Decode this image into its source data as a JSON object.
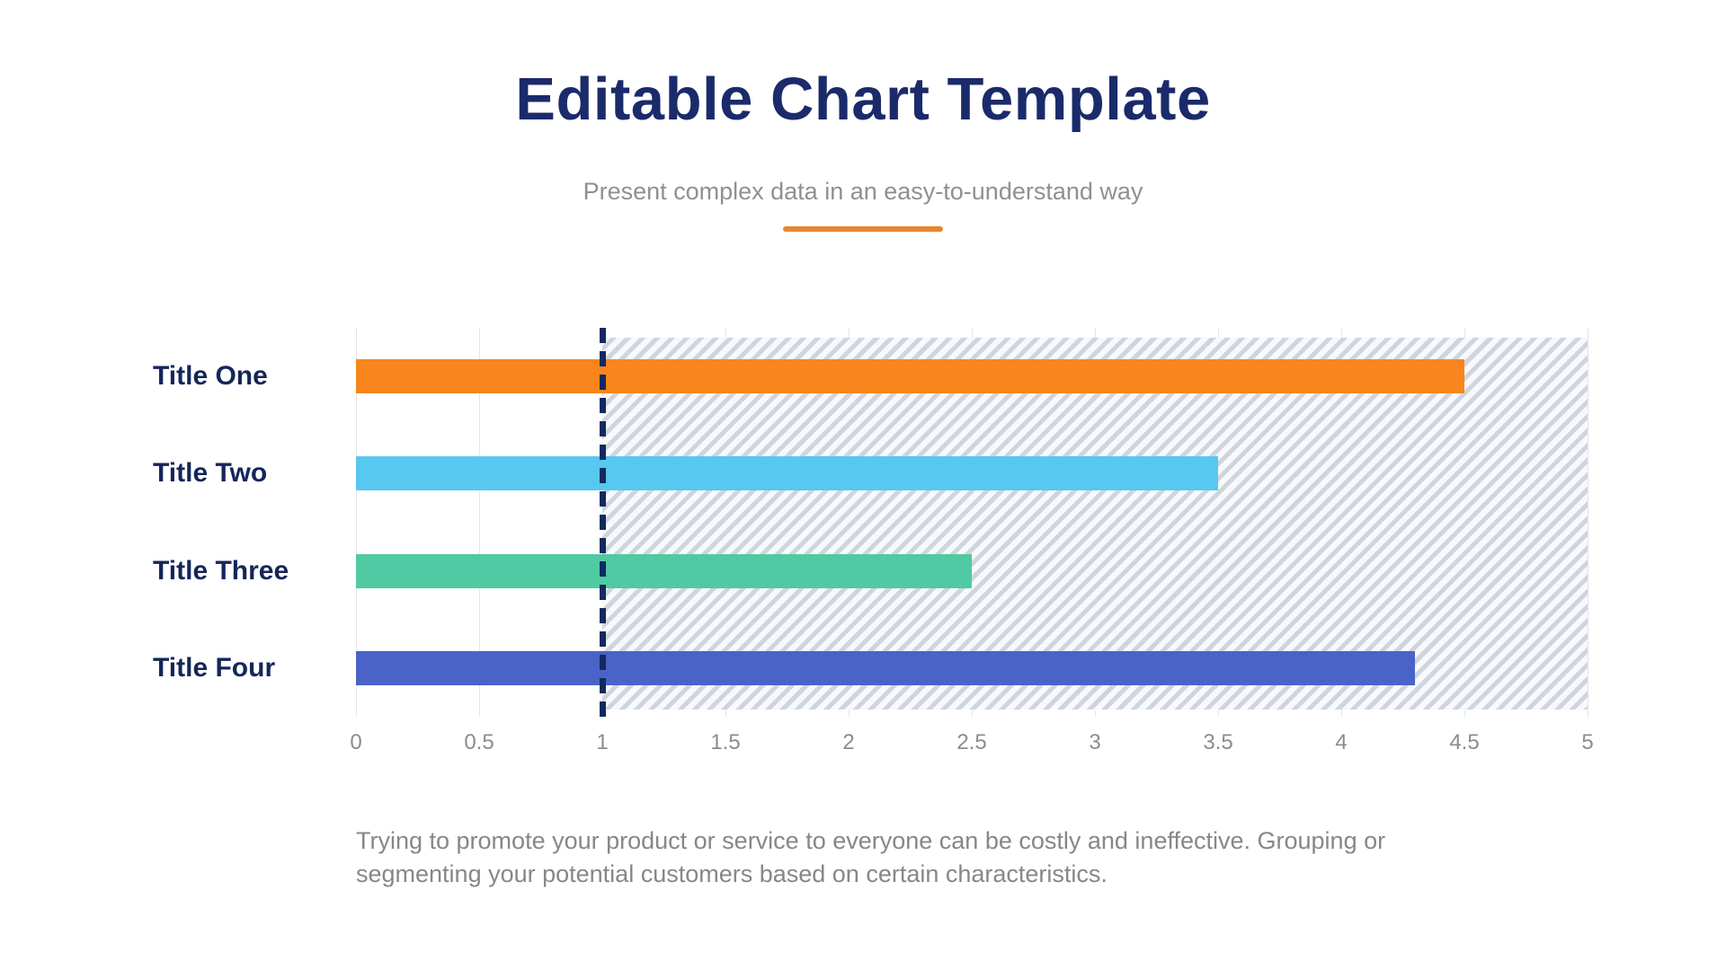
{
  "header": {
    "title": "Editable Chart Template",
    "subtitle": "Present complex data in an easy-to-understand way",
    "divider_color": "#E8872D"
  },
  "chart_data": {
    "type": "bar",
    "orientation": "horizontal",
    "categories": [
      "Title One",
      "Title Two",
      "Title Three",
      "Title Four"
    ],
    "values": [
      4.5,
      3.5,
      2.5,
      4.3
    ],
    "bar_colors": [
      "#F8861D",
      "#57C8F0",
      "#50CAA3",
      "#4A63C8"
    ],
    "xlim": [
      0,
      5
    ],
    "x_ticks": [
      "0",
      "0.5",
      "1",
      "1.5",
      "2",
      "2.5",
      "3",
      "3.5",
      "4",
      "4.5",
      "5"
    ],
    "grid": true,
    "legend": false,
    "xlabel": "",
    "ylabel": "",
    "reference_line": {
      "x": 1,
      "style": "dashed",
      "color": "#132A5E"
    },
    "shaded_region": {
      "from": 1,
      "to": 5,
      "pattern": "diagonal-hatch",
      "stripe_color": "#CFD5DF",
      "background": "#F7F9FB"
    },
    "category_label_color": "#14265A",
    "tick_label_color": "#8A8C8F"
  },
  "description": {
    "lines": [
      "Trying to promote your product or service to everyone can be costly and ineffective. Grouping or",
      "segmenting your potential customers based on certain characteristics."
    ]
  },
  "colors": {
    "title_navy": "#1B2A6A",
    "subtitle_gray": "#8E9093",
    "description_gray": "#85878A",
    "gridline_gray": "#E4E5E7",
    "accent_orange": "#E8872D"
  }
}
